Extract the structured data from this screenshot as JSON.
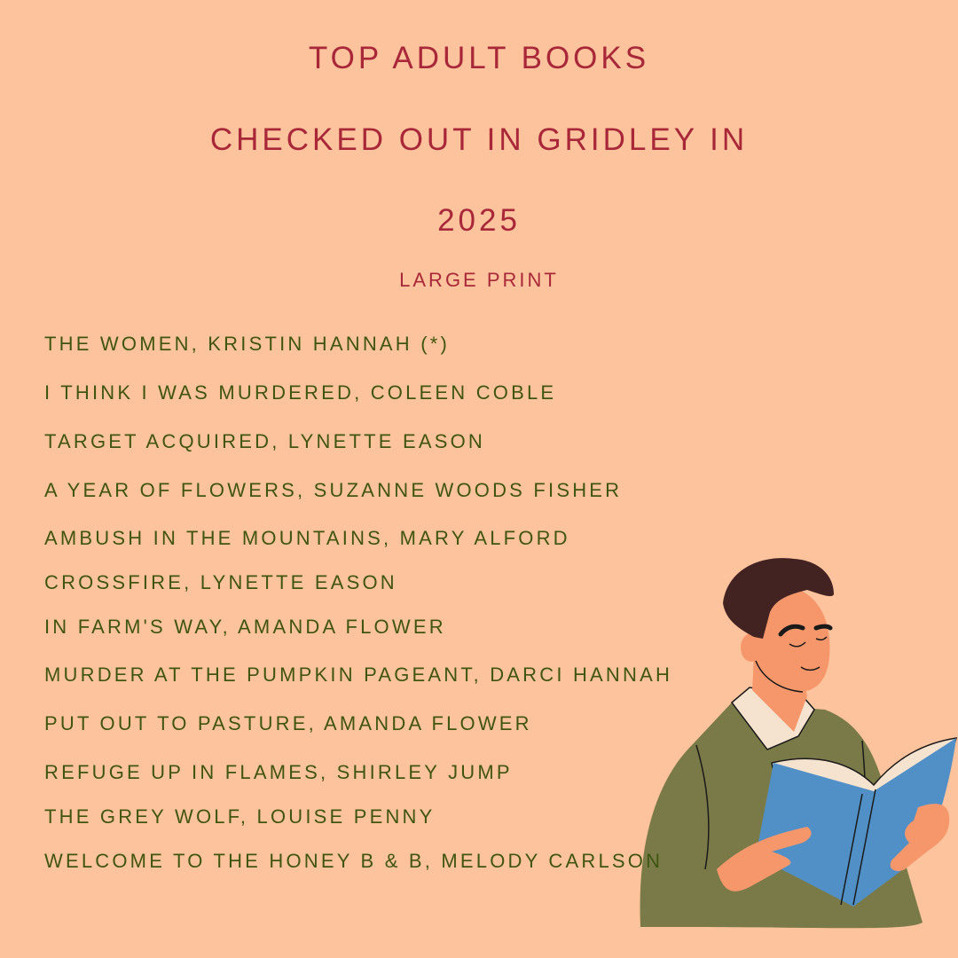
{
  "header": {
    "title_lines": [
      "TOP ADULT BOOKS",
      "CHECKED OUT IN GRIDLEY IN",
      "2025"
    ],
    "subtitle": "LARGE PRINT"
  },
  "books": [
    "THE WOMEN, KRISTIN HANNAH (*)",
    "I THINK I WAS MURDERED, COLEEN COBLE",
    "TARGET ACQUIRED, LYNETTE EASON",
    "A YEAR OF FLOWERS, SUZANNE WOODS FISHER",
    "AMBUSH IN THE MOUNTAINS, MARY ALFORD",
    "CROSSFIRE, LYNETTE EASON",
    "IN FARM'S WAY, AMANDA FLOWER",
    "MURDER AT THE PUMPKIN PAGEANT, DARCI HANNAH",
    "PUT OUT TO PASTURE, AMANDA FLOWER",
    "REFUGE UP IN FLAMES, SHIRLEY JUMP",
    "THE GREY WOLF, LOUISE PENNY",
    "WELCOME TO THE HONEY B & B, MELODY CARLSON"
  ],
  "colors": {
    "background": "#fdc39c",
    "title": "#a8283a",
    "list_text": "#3f5510",
    "sweater": "#7a7a48",
    "book": "#5190c6",
    "skin": "#f6976b",
    "hair": "#432222"
  },
  "illustration": "man-reading-book"
}
